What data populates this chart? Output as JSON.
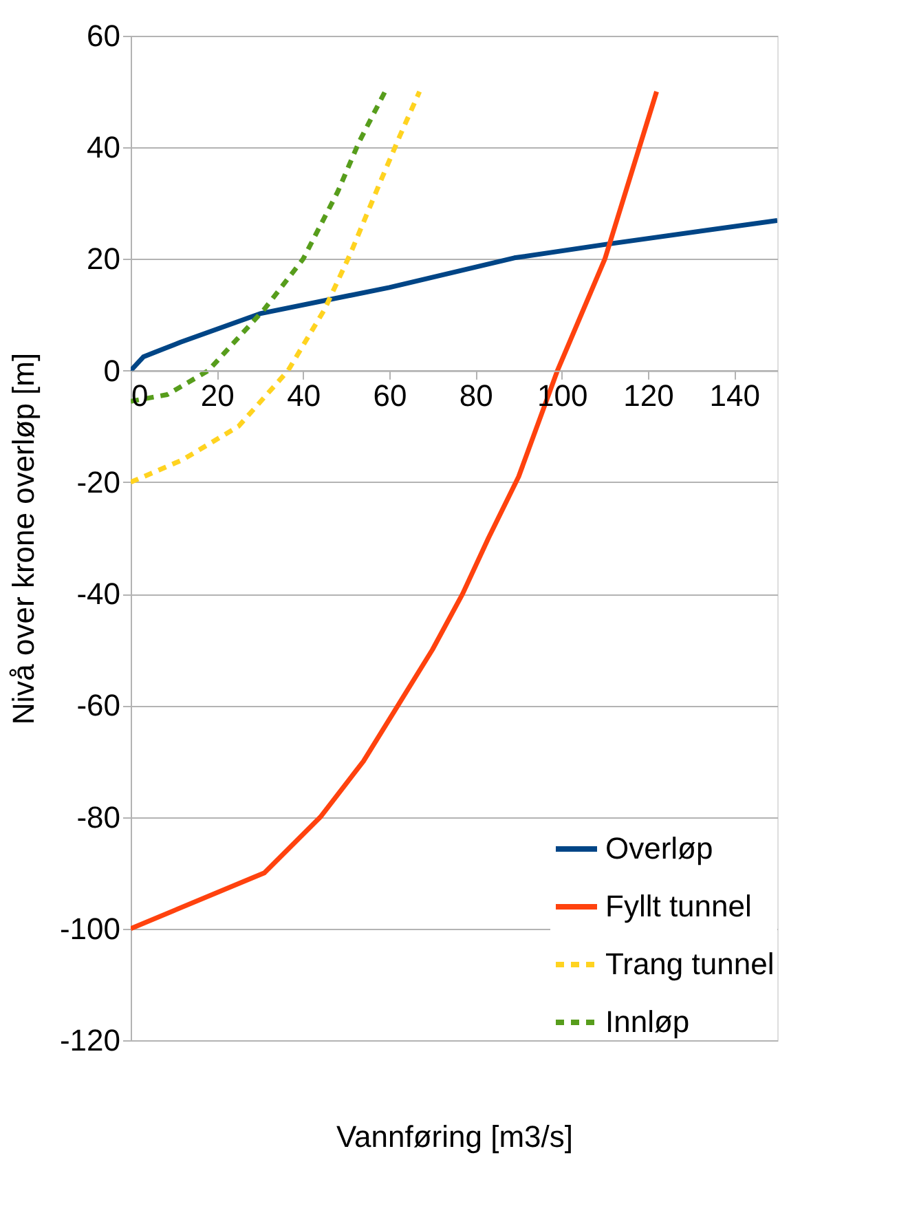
{
  "chart_data": {
    "type": "line",
    "xlabel": "Vannføring [m3/s]",
    "ylabel": "Nivå over krone overløp [m]",
    "xlim": [
      0,
      150
    ],
    "xticks": [
      0,
      20,
      40,
      60,
      80,
      100,
      120,
      140
    ],
    "ylim": [
      -120,
      60
    ],
    "yticks": [
      -120,
      -100,
      -80,
      -60,
      -40,
      -20,
      0,
      20,
      40,
      60
    ],
    "grid": "y",
    "legend": "bottom right",
    "marker": "none",
    "series": [
      {
        "name": "Overløp",
        "color": "#004586",
        "line_style": "solid",
        "x": [
          0,
          3,
          11.6,
          30,
          60,
          89,
          110,
          150
        ],
        "values": [
          0,
          2.5,
          5.1,
          10.2,
          14.9,
          20.2,
          22.6,
          26.9
        ]
      },
      {
        "name": "Fyllt tunnel",
        "color": "#ff420e",
        "line_style": "solid",
        "x": [
          0,
          31,
          44,
          54,
          62,
          70,
          77,
          83,
          90,
          99,
          110,
          122
        ],
        "values": [
          -100,
          -90,
          -80,
          -70,
          -60,
          -50,
          -40,
          -30,
          -19,
          0,
          20,
          50
        ]
      },
      {
        "name": "Trang tunnel",
        "color": "#ffd320",
        "line_style": "dashed",
        "x": [
          0,
          12,
          25,
          36.5,
          45,
          51,
          58,
          62.4,
          67
        ],
        "values": [
          -20,
          -16,
          -10,
          0,
          11,
          21,
          34,
          42,
          50
        ]
      },
      {
        "name": "Innløp",
        "color": "#579d1c",
        "line_style": "dashed",
        "x": [
          0,
          8.5,
          18,
          31,
          40,
          48,
          53,
          59
        ],
        "values": [
          -5.5,
          -4.3,
          0,
          11,
          20,
          32,
          41,
          50
        ]
      }
    ]
  }
}
